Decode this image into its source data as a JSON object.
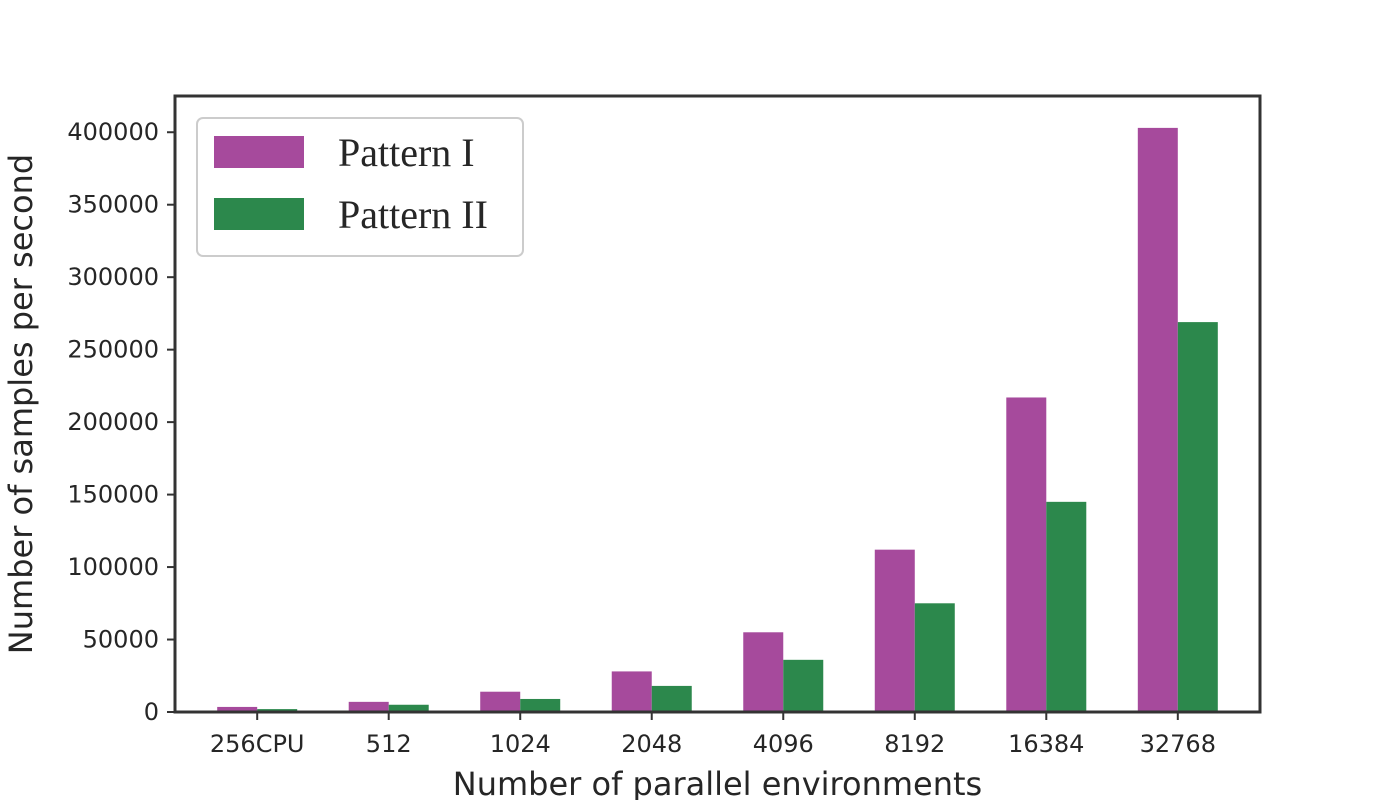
{
  "chart_data": {
    "type": "bar",
    "title": "",
    "xlabel": "Number of parallel environments",
    "ylabel": "Number of samples per second",
    "categories": [
      "256CPU",
      "512",
      "1024",
      "2048",
      "4096",
      "8192",
      "16384",
      "32768"
    ],
    "series": [
      {
        "name": "Pattern I",
        "color": "#a64a9c",
        "values": [
          3500,
          7000,
          14000,
          28000,
          55000,
          112000,
          217000,
          403000
        ]
      },
      {
        "name": "Pattern II",
        "color": "#2c884c",
        "values": [
          2000,
          5000,
          9000,
          18000,
          36000,
          75000,
          145000,
          269000
        ]
      }
    ],
    "ylim": [
      0,
      425000
    ],
    "yticks": [
      0,
      50000,
      100000,
      150000,
      200000,
      250000,
      300000,
      350000,
      400000
    ],
    "ytick_labels": [
      "0",
      "50000",
      "100000",
      "150000",
      "200000",
      "250000",
      "300000",
      "350000",
      "400000"
    ],
    "grid": false,
    "legend_position": "top-left"
  }
}
